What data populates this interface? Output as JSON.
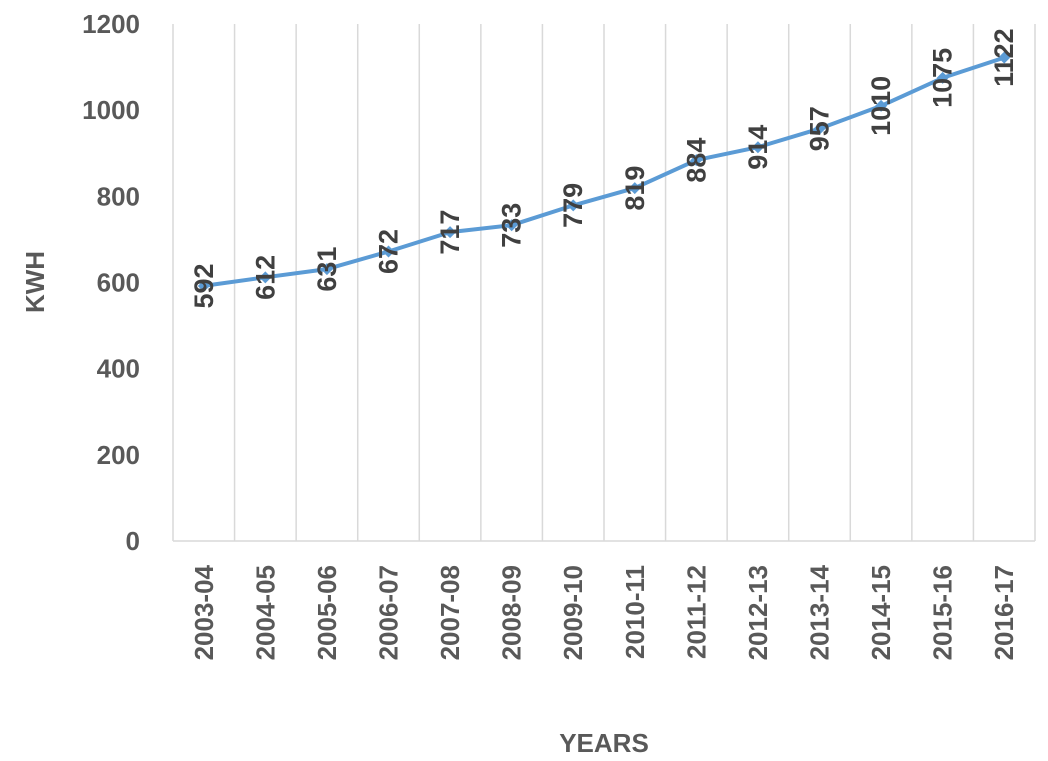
{
  "chart_data": {
    "type": "line",
    "title": "",
    "xlabel": "YEARS",
    "ylabel": "KWH",
    "ylim": [
      0,
      1200
    ],
    "yticks": [
      0,
      200,
      400,
      600,
      800,
      1000,
      1200
    ],
    "grid": "vertical",
    "legend": "none",
    "categories": [
      "2003-04",
      "2004-05",
      "2005-06",
      "2006-07",
      "2007-08",
      "2008-09",
      "2009-10",
      "2010-11",
      "2011-12",
      "2012-13",
      "2013-14",
      "2014-15",
      "2015-16",
      "2016-17"
    ],
    "series": [
      {
        "values": [
          592,
          612,
          631,
          672,
          717,
          733,
          779,
          819,
          884,
          914,
          957,
          1010,
          1075,
          1122
        ],
        "color": "#5B9BD5",
        "data_labels": true
      }
    ]
  }
}
